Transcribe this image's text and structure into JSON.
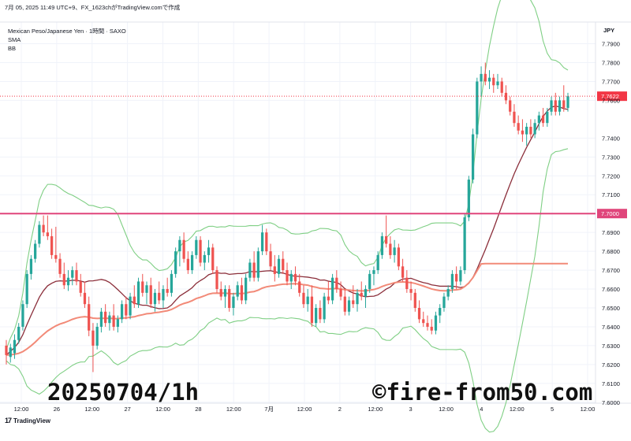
{
  "header": {
    "text": "7月 05, 2025 11:49 UTC+9、FX_1623chがTradingView.comで作成"
  },
  "legend": {
    "symbol": "Mexican Peso/Japanese Yen · 1時間 · SAXO",
    "sma": "SMA",
    "bb": "BB"
  },
  "watermark": {
    "left": "20250704/1h",
    "right": "©fire-from50.com"
  },
  "footer": {
    "brand": "TradingView",
    "logo": "17"
  },
  "colors": {
    "up": "#26a69a",
    "down": "#ef5350",
    "sma_short": "#8b2e3a",
    "sma_long": "#f28a78",
    "bb": "#7fcf84",
    "hline": "#e0457b",
    "price_label": "#f23645"
  },
  "chart_data": {
    "type": "candlestick",
    "currency": "JPY",
    "ylim": [
      7.5995,
      7.8015
    ],
    "y_ticks": [
      "7.7900",
      "7.7800",
      "7.7700",
      "7.7600",
      "7.7400",
      "7.7300",
      "7.7200",
      "7.7100",
      "7.6900",
      "7.6800",
      "7.6700",
      "7.6600",
      "7.6500",
      "7.6400",
      "7.6300",
      "7.6200",
      "7.6100",
      "7.6000"
    ],
    "x_labels": [
      "12:00",
      "26",
      "12:00",
      "27",
      "12:00",
      "28",
      "12:00",
      "7月",
      "12:00",
      "2",
      "12:00",
      "3",
      "12:00",
      "4",
      "12:00",
      "5",
      "12:00"
    ],
    "horizontal_line": {
      "value": 7.7,
      "label": "7.7000"
    },
    "last_price": {
      "value": 7.7622,
      "label": "7.7622"
    },
    "bb_note": "Bollinger Bands (upper/lower), SMA short (20), SMA long (200)",
    "candles": [
      {
        "o": 7.63,
        "h": 7.633,
        "l": 7.62,
        "c": 7.625
      },
      {
        "o": 7.624,
        "h": 7.631,
        "l": 7.621,
        "c": 7.629
      },
      {
        "o": 7.626,
        "h": 7.636,
        "l": 7.623,
        "c": 7.633
      },
      {
        "o": 7.633,
        "h": 7.642,
        "l": 7.631,
        "c": 7.64
      },
      {
        "o": 7.64,
        "h": 7.654,
        "l": 7.638,
        "c": 7.652
      },
      {
        "o": 7.652,
        "h": 7.67,
        "l": 7.65,
        "c": 7.668
      },
      {
        "o": 7.668,
        "h": 7.678,
        "l": 7.665,
        "c": 7.676
      },
      {
        "o": 7.676,
        "h": 7.686,
        "l": 7.674,
        "c": 7.684
      },
      {
        "o": 7.684,
        "h": 7.696,
        "l": 7.682,
        "c": 7.694
      },
      {
        "o": 7.694,
        "h": 7.699,
        "l": 7.688,
        "c": 7.69
      },
      {
        "o": 7.69,
        "h": 7.699,
        "l": 7.686,
        "c": 7.688
      },
      {
        "o": 7.688,
        "h": 7.692,
        "l": 7.676,
        "c": 7.678
      },
      {
        "o": 7.678,
        "h": 7.693,
        "l": 7.674,
        "c": 7.676
      },
      {
        "o": 7.676,
        "h": 7.679,
        "l": 7.666,
        "c": 7.668
      },
      {
        "o": 7.668,
        "h": 7.674,
        "l": 7.66,
        "c": 7.662
      },
      {
        "o": 7.662,
        "h": 7.67,
        "l": 7.659,
        "c": 7.666
      },
      {
        "o": 7.666,
        "h": 7.672,
        "l": 7.662,
        "c": 7.67
      },
      {
        "o": 7.67,
        "h": 7.674,
        "l": 7.662,
        "c": 7.664
      },
      {
        "o": 7.664,
        "h": 7.668,
        "l": 7.656,
        "c": 7.658
      },
      {
        "o": 7.658,
        "h": 7.664,
        "l": 7.65,
        "c": 7.652
      },
      {
        "o": 7.652,
        "h": 7.656,
        "l": 7.635,
        "c": 7.638
      },
      {
        "o": 7.638,
        "h": 7.642,
        "l": 7.616,
        "c": 7.63
      },
      {
        "o": 7.63,
        "h": 7.642,
        "l": 7.628,
        "c": 7.64
      },
      {
        "o": 7.64,
        "h": 7.65,
        "l": 7.637,
        "c": 7.648
      },
      {
        "o": 7.648,
        "h": 7.652,
        "l": 7.64,
        "c": 7.642
      },
      {
        "o": 7.642,
        "h": 7.648,
        "l": 7.638,
        "c": 7.646
      },
      {
        "o": 7.646,
        "h": 7.652,
        "l": 7.638,
        "c": 7.64
      },
      {
        "o": 7.64,
        "h": 7.646,
        "l": 7.637,
        "c": 7.644
      },
      {
        "o": 7.644,
        "h": 7.654,
        "l": 7.642,
        "c": 7.652
      },
      {
        "o": 7.652,
        "h": 7.656,
        "l": 7.644,
        "c": 7.646
      },
      {
        "o": 7.646,
        "h": 7.658,
        "l": 7.644,
        "c": 7.656
      },
      {
        "o": 7.656,
        "h": 7.662,
        "l": 7.65,
        "c": 7.652
      },
      {
        "o": 7.652,
        "h": 7.666,
        "l": 7.65,
        "c": 7.664
      },
      {
        "o": 7.664,
        "h": 7.668,
        "l": 7.656,
        "c": 7.658
      },
      {
        "o": 7.658,
        "h": 7.664,
        "l": 7.652,
        "c": 7.662
      },
      {
        "o": 7.662,
        "h": 7.666,
        "l": 7.65,
        "c": 7.652
      },
      {
        "o": 7.652,
        "h": 7.66,
        "l": 7.648,
        "c": 7.658
      },
      {
        "o": 7.658,
        "h": 7.664,
        "l": 7.652,
        "c": 7.654
      },
      {
        "o": 7.654,
        "h": 7.662,
        "l": 7.65,
        "c": 7.66
      },
      {
        "o": 7.66,
        "h": 7.666,
        "l": 7.656,
        "c": 7.658
      },
      {
        "o": 7.658,
        "h": 7.67,
        "l": 7.656,
        "c": 7.668
      },
      {
        "o": 7.668,
        "h": 7.682,
        "l": 7.666,
        "c": 7.68
      },
      {
        "o": 7.68,
        "h": 7.688,
        "l": 7.672,
        "c": 7.686
      },
      {
        "o": 7.686,
        "h": 7.69,
        "l": 7.674,
        "c": 7.676
      },
      {
        "o": 7.676,
        "h": 7.68,
        "l": 7.668,
        "c": 7.67
      },
      {
        "o": 7.67,
        "h": 7.68,
        "l": 7.668,
        "c": 7.678
      },
      {
        "o": 7.678,
        "h": 7.688,
        "l": 7.676,
        "c": 7.686
      },
      {
        "o": 7.686,
        "h": 7.688,
        "l": 7.672,
        "c": 7.674
      },
      {
        "o": 7.674,
        "h": 7.68,
        "l": 7.67,
        "c": 7.678
      },
      {
        "o": 7.678,
        "h": 7.686,
        "l": 7.674,
        "c": 7.682
      },
      {
        "o": 7.682,
        "h": 7.684,
        "l": 7.668,
        "c": 7.67
      },
      {
        "o": 7.67,
        "h": 7.672,
        "l": 7.658,
        "c": 7.66
      },
      {
        "o": 7.66,
        "h": 7.664,
        "l": 7.654,
        "c": 7.656
      },
      {
        "o": 7.656,
        "h": 7.662,
        "l": 7.65,
        "c": 7.66
      },
      {
        "o": 7.66,
        "h": 7.662,
        "l": 7.648,
        "c": 7.65
      },
      {
        "o": 7.65,
        "h": 7.658,
        "l": 7.646,
        "c": 7.656
      },
      {
        "o": 7.656,
        "h": 7.664,
        "l": 7.654,
        "c": 7.662
      },
      {
        "o": 7.662,
        "h": 7.666,
        "l": 7.652,
        "c": 7.654
      },
      {
        "o": 7.654,
        "h": 7.668,
        "l": 7.652,
        "c": 7.666
      },
      {
        "o": 7.666,
        "h": 7.676,
        "l": 7.664,
        "c": 7.674
      },
      {
        "o": 7.674,
        "h": 7.68,
        "l": 7.664,
        "c": 7.666
      },
      {
        "o": 7.666,
        "h": 7.682,
        "l": 7.664,
        "c": 7.68
      },
      {
        "o": 7.68,
        "h": 7.694,
        "l": 7.678,
        "c": 7.69
      },
      {
        "o": 7.69,
        "h": 7.692,
        "l": 7.678,
        "c": 7.68
      },
      {
        "o": 7.68,
        "h": 7.684,
        "l": 7.67,
        "c": 7.672
      },
      {
        "o": 7.672,
        "h": 7.678,
        "l": 7.664,
        "c": 7.668
      },
      {
        "o": 7.668,
        "h": 7.678,
        "l": 7.666,
        "c": 7.676
      },
      {
        "o": 7.676,
        "h": 7.68,
        "l": 7.668,
        "c": 7.67
      },
      {
        "o": 7.67,
        "h": 7.674,
        "l": 7.662,
        "c": 7.664
      },
      {
        "o": 7.664,
        "h": 7.67,
        "l": 7.66,
        "c": 7.668
      },
      {
        "o": 7.668,
        "h": 7.672,
        "l": 7.662,
        "c": 7.664
      },
      {
        "o": 7.664,
        "h": 7.668,
        "l": 7.656,
        "c": 7.658
      },
      {
        "o": 7.658,
        "h": 7.662,
        "l": 7.65,
        "c": 7.652
      },
      {
        "o": 7.652,
        "h": 7.66,
        "l": 7.648,
        "c": 7.656
      },
      {
        "o": 7.656,
        "h": 7.662,
        "l": 7.64,
        "c": 7.642
      },
      {
        "o": 7.642,
        "h": 7.652,
        "l": 7.64,
        "c": 7.65
      },
      {
        "o": 7.65,
        "h": 7.654,
        "l": 7.642,
        "c": 7.644
      },
      {
        "o": 7.644,
        "h": 7.658,
        "l": 7.642,
        "c": 7.656
      },
      {
        "o": 7.656,
        "h": 7.664,
        "l": 7.652,
        "c": 7.654
      },
      {
        "o": 7.654,
        "h": 7.668,
        "l": 7.652,
        "c": 7.666
      },
      {
        "o": 7.666,
        "h": 7.67,
        "l": 7.658,
        "c": 7.66
      },
      {
        "o": 7.66,
        "h": 7.664,
        "l": 7.654,
        "c": 7.656
      },
      {
        "o": 7.656,
        "h": 7.66,
        "l": 7.646,
        "c": 7.648
      },
      {
        "o": 7.648,
        "h": 7.656,
        "l": 7.646,
        "c": 7.654
      },
      {
        "o": 7.654,
        "h": 7.662,
        "l": 7.65,
        "c": 7.652
      },
      {
        "o": 7.652,
        "h": 7.66,
        "l": 7.648,
        "c": 7.658
      },
      {
        "o": 7.658,
        "h": 7.664,
        "l": 7.654,
        "c": 7.656
      },
      {
        "o": 7.656,
        "h": 7.662,
        "l": 7.65,
        "c": 7.66
      },
      {
        "o": 7.66,
        "h": 7.67,
        "l": 7.658,
        "c": 7.668
      },
      {
        "o": 7.668,
        "h": 7.672,
        "l": 7.662,
        "c": 7.67
      },
      {
        "o": 7.67,
        "h": 7.68,
        "l": 7.668,
        "c": 7.678
      },
      {
        "o": 7.678,
        "h": 7.69,
        "l": 7.676,
        "c": 7.688
      },
      {
        "o": 7.688,
        "h": 7.699,
        "l": 7.682,
        "c": 7.684
      },
      {
        "o": 7.684,
        "h": 7.688,
        "l": 7.676,
        "c": 7.678
      },
      {
        "o": 7.678,
        "h": 7.686,
        "l": 7.674,
        "c": 7.682
      },
      {
        "o": 7.682,
        "h": 7.684,
        "l": 7.67,
        "c": 7.672
      },
      {
        "o": 7.672,
        "h": 7.676,
        "l": 7.664,
        "c": 7.666
      },
      {
        "o": 7.666,
        "h": 7.67,
        "l": 7.658,
        "c": 7.66
      },
      {
        "o": 7.66,
        "h": 7.664,
        "l": 7.654,
        "c": 7.658
      },
      {
        "o": 7.658,
        "h": 7.66,
        "l": 7.648,
        "c": 7.65
      },
      {
        "o": 7.65,
        "h": 7.654,
        "l": 7.642,
        "c": 7.644
      },
      {
        "o": 7.644,
        "h": 7.648,
        "l": 7.64,
        "c": 7.642
      },
      {
        "o": 7.642,
        "h": 7.646,
        "l": 7.638,
        "c": 7.64
      },
      {
        "o": 7.64,
        "h": 7.644,
        "l": 7.636,
        "c": 7.638
      },
      {
        "o": 7.638,
        "h": 7.648,
        "l": 7.636,
        "c": 7.646
      },
      {
        "o": 7.646,
        "h": 7.652,
        "l": 7.642,
        "c": 7.65
      },
      {
        "o": 7.65,
        "h": 7.658,
        "l": 7.648,
        "c": 7.656
      },
      {
        "o": 7.656,
        "h": 7.662,
        "l": 7.654,
        "c": 7.66
      },
      {
        "o": 7.66,
        "h": 7.67,
        "l": 7.658,
        "c": 7.668
      },
      {
        "o": 7.668,
        "h": 7.672,
        "l": 7.66,
        "c": 7.664
      },
      {
        "o": 7.664,
        "h": 7.672,
        "l": 7.662,
        "c": 7.67
      },
      {
        "o": 7.67,
        "h": 7.7,
        "l": 7.668,
        "c": 7.698
      },
      {
        "o": 7.698,
        "h": 7.72,
        "l": 7.696,
        "c": 7.718
      },
      {
        "o": 7.718,
        "h": 7.745,
        "l": 7.716,
        "c": 7.742
      },
      {
        "o": 7.742,
        "h": 7.772,
        "l": 7.74,
        "c": 7.77
      },
      {
        "o": 7.77,
        "h": 7.778,
        "l": 7.762,
        "c": 7.774
      },
      {
        "o": 7.774,
        "h": 7.78,
        "l": 7.768,
        "c": 7.77
      },
      {
        "o": 7.77,
        "h": 7.776,
        "l": 7.766,
        "c": 7.772
      },
      {
        "o": 7.772,
        "h": 7.774,
        "l": 7.764,
        "c": 7.768
      },
      {
        "o": 7.768,
        "h": 7.774,
        "l": 7.766,
        "c": 7.77
      },
      {
        "o": 7.77,
        "h": 7.772,
        "l": 7.762,
        "c": 7.764
      },
      {
        "o": 7.764,
        "h": 7.768,
        "l": 7.758,
        "c": 7.76
      },
      {
        "o": 7.76,
        "h": 7.762,
        "l": 7.752,
        "c": 7.754
      },
      {
        "o": 7.754,
        "h": 7.758,
        "l": 7.746,
        "c": 7.748
      },
      {
        "o": 7.748,
        "h": 7.752,
        "l": 7.742,
        "c": 7.744
      },
      {
        "o": 7.744,
        "h": 7.75,
        "l": 7.738,
        "c": 7.742
      },
      {
        "o": 7.742,
        "h": 7.748,
        "l": 7.736,
        "c": 7.746
      },
      {
        "o": 7.746,
        "h": 7.75,
        "l": 7.74,
        "c": 7.742
      },
      {
        "o": 7.742,
        "h": 7.75,
        "l": 7.74,
        "c": 7.748
      },
      {
        "o": 7.748,
        "h": 7.754,
        "l": 7.744,
        "c": 7.752
      },
      {
        "o": 7.752,
        "h": 7.756,
        "l": 7.746,
        "c": 7.748
      },
      {
        "o": 7.748,
        "h": 7.756,
        "l": 7.746,
        "c": 7.754
      },
      {
        "o": 7.754,
        "h": 7.762,
        "l": 7.752,
        "c": 7.76
      },
      {
        "o": 7.76,
        "h": 7.764,
        "l": 7.752,
        "c": 7.754
      },
      {
        "o": 7.754,
        "h": 7.762,
        "l": 7.752,
        "c": 7.76
      },
      {
        "o": 7.76,
        "h": 7.768,
        "l": 7.754,
        "c": 7.756
      },
      {
        "o": 7.756,
        "h": 7.764,
        "l": 7.754,
        "c": 7.7622
      }
    ]
  }
}
